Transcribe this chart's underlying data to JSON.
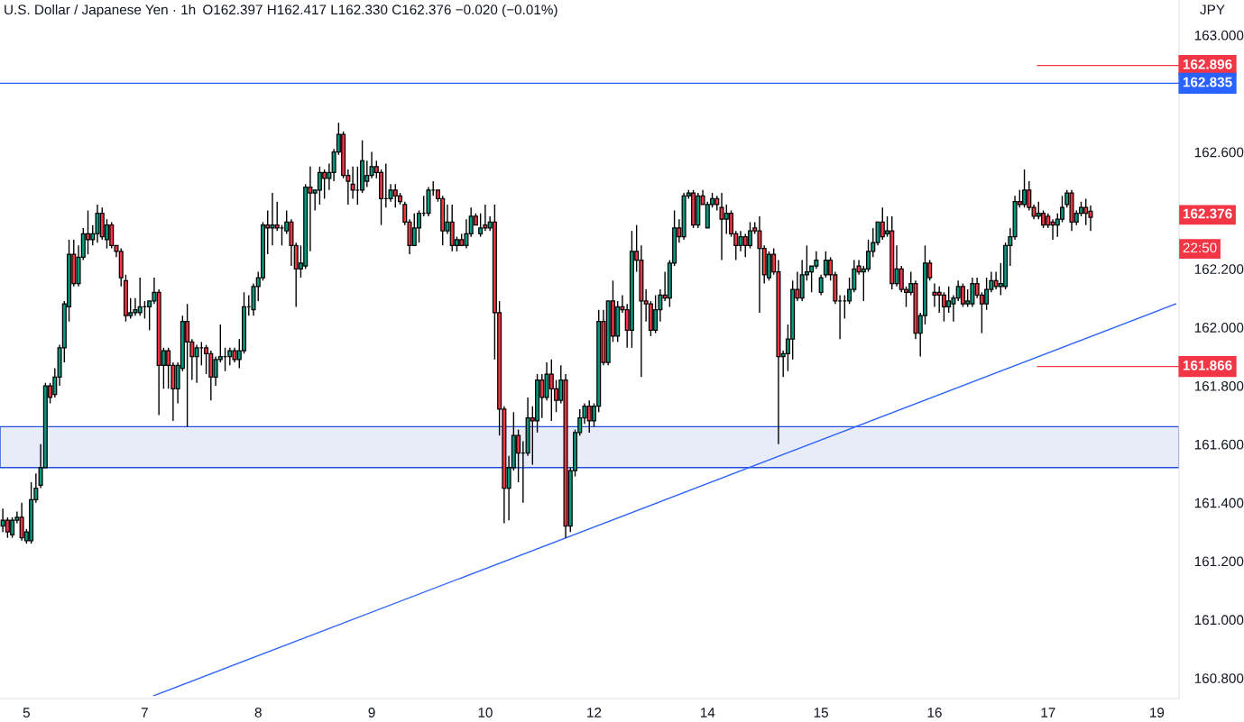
{
  "chart_data": {
    "type": "candlestick",
    "title": "U.S. Dollar / Japanese Yen · 1h",
    "subtitle": "O162.397 H162.417 L162.330 C162.376 −0.020 (−0.01%)",
    "ylabel": "JPY",
    "categories": [
      null,
      null,
      null,
      null,
      null,
      "5",
      null,
      null,
      null,
      null,
      null,
      null,
      null,
      null,
      null,
      null,
      null,
      null,
      null,
      null,
      null,
      null,
      null,
      null,
      null,
      null,
      null,
      null,
      null,
      null,
      "7",
      null,
      null,
      null,
      null,
      null,
      null,
      null,
      null,
      null,
      null,
      null,
      null,
      null,
      null,
      null,
      null,
      null,
      null,
      null,
      null,
      null,
      null,
      null,
      "8",
      null,
      null,
      null,
      null,
      null,
      null,
      null,
      null,
      null,
      null,
      null,
      null,
      null,
      null,
      null,
      null,
      null,
      null,
      null,
      null,
      null,
      null,
      null,
      "9",
      null,
      null,
      null,
      null,
      null,
      null,
      null,
      null,
      null,
      null,
      null,
      null,
      null,
      null,
      null,
      null,
      null,
      null,
      null,
      null,
      null,
      null,
      null,
      "10",
      null,
      null,
      null,
      null,
      null,
      null,
      null,
      null,
      null,
      null,
      null,
      null,
      null,
      null,
      null,
      null,
      null,
      null,
      null,
      null,
      null,
      null,
      "12",
      null,
      null,
      null,
      null,
      null,
      null,
      null,
      null,
      null,
      null,
      null,
      null,
      null,
      null,
      null,
      null,
      null,
      null,
      null,
      null,
      null,
      null,
      null,
      "14",
      null,
      null,
      null,
      null,
      null,
      null,
      null,
      null,
      null,
      null,
      null,
      null,
      null,
      null,
      null,
      null,
      null,
      null,
      null,
      null,
      null,
      null,
      null,
      "15",
      null,
      null,
      null,
      null,
      null,
      null,
      null,
      null,
      null,
      null,
      null,
      null,
      null,
      null,
      null,
      null,
      null,
      null,
      null,
      null,
      null,
      null,
      null,
      "16",
      null,
      null,
      null,
      null,
      null,
      null,
      null,
      null,
      null,
      null,
      null,
      null,
      null,
      null,
      null,
      null,
      null,
      null,
      null,
      null,
      null,
      null,
      null,
      "17",
      null,
      null,
      null,
      null,
      null,
      null,
      null,
      null,
      null,
      null,
      null,
      null,
      null,
      null,
      null,
      null,
      null,
      null,
      null,
      null,
      null,
      null,
      "19",
      null,
      null,
      null,
      null
    ],
    "ohlc": [
      [
        161.32,
        161.38,
        161.3,
        161.34
      ],
      [
        161.34,
        161.35,
        161.28,
        161.3
      ],
      [
        161.29,
        161.35,
        161.28,
        161.34
      ],
      [
        161.34,
        161.37,
        161.33,
        161.35
      ],
      [
        161.35,
        161.4,
        161.27,
        161.28
      ],
      [
        161.27,
        161.31,
        161.26,
        161.3
      ],
      [
        161.27,
        161.47,
        161.26,
        161.41
      ],
      [
        161.41,
        161.5,
        161.4,
        161.45
      ],
      [
        161.46,
        161.6,
        161.45,
        161.52
      ],
      [
        161.52,
        161.81,
        161.52,
        161.8
      ],
      [
        161.8,
        161.81,
        161.74,
        161.76
      ],
      [
        161.77,
        161.86,
        161.76,
        161.83
      ],
      [
        161.83,
        161.94,
        161.8,
        161.93
      ],
      [
        161.93,
        162.09,
        161.88,
        162.08
      ],
      [
        162.07,
        162.3,
        162.02,
        162.25
      ],
      [
        162.25,
        162.3,
        162.14,
        162.15
      ],
      [
        162.15,
        162.28,
        162.14,
        162.24
      ],
      [
        162.24,
        162.34,
        162.23,
        162.32
      ],
      [
        162.32,
        162.4,
        162.25,
        162.3
      ],
      [
        162.3,
        162.35,
        162.28,
        162.32
      ],
      [
        162.32,
        162.42,
        162.29,
        162.39
      ],
      [
        162.39,
        162.41,
        162.3,
        162.31
      ],
      [
        162.3,
        162.37,
        162.27,
        162.35
      ],
      [
        162.35,
        162.36,
        162.27,
        162.28
      ],
      [
        162.28,
        162.28,
        162.24,
        162.26
      ],
      [
        162.26,
        162.27,
        162.14,
        162.17
      ],
      [
        162.16,
        162.18,
        162.02,
        162.04
      ],
      [
        162.04,
        162.1,
        162.03,
        162.05
      ],
      [
        162.05,
        162.1,
        162.04,
        162.06
      ],
      [
        162.05,
        162.17,
        162.04,
        162.07
      ],
      [
        162.07,
        162.09,
        162.03,
        162.07
      ],
      [
        162.07,
        162.09,
        161.99,
        162.09
      ],
      [
        162.09,
        162.17,
        162.08,
        162.12
      ],
      [
        162.12,
        162.13,
        161.7,
        161.87
      ],
      [
        161.87,
        161.93,
        161.79,
        161.92
      ],
      [
        161.92,
        161.93,
        161.79,
        161.87
      ],
      [
        161.87,
        161.88,
        161.68,
        161.79
      ],
      [
        161.79,
        161.88,
        161.74,
        161.87
      ],
      [
        161.86,
        162.04,
        161.85,
        162.02
      ],
      [
        162.02,
        162.08,
        161.66,
        161.95
      ],
      [
        161.95,
        161.96,
        161.82,
        161.9
      ],
      [
        161.9,
        161.94,
        161.81,
        161.93
      ],
      [
        161.93,
        161.95,
        161.87,
        161.93
      ],
      [
        161.93,
        161.94,
        161.84,
        161.91
      ],
      [
        161.91,
        161.92,
        161.75,
        161.83
      ],
      [
        161.83,
        161.9,
        161.8,
        161.89
      ],
      [
        161.89,
        162.01,
        161.88,
        161.9
      ],
      [
        161.9,
        161.93,
        161.85,
        161.9
      ],
      [
        161.9,
        161.93,
        161.87,
        161.92
      ],
      [
        161.92,
        161.93,
        161.88,
        161.89
      ],
      [
        161.89,
        161.96,
        161.86,
        161.92
      ],
      [
        161.92,
        162.12,
        161.91,
        162.07
      ],
      [
        162.07,
        162.11,
        162.04,
        162.07
      ],
      [
        162.06,
        162.15,
        162.04,
        162.14
      ],
      [
        162.14,
        162.19,
        162.09,
        162.17
      ],
      [
        162.17,
        162.36,
        162.16,
        162.35
      ],
      [
        162.35,
        162.4,
        162.25,
        162.34
      ],
      [
        162.34,
        162.46,
        162.28,
        162.35
      ],
      [
        162.35,
        162.43,
        162.33,
        162.34
      ],
      [
        162.34,
        162.35,
        162.28,
        162.34
      ],
      [
        162.33,
        162.4,
        162.32,
        162.36
      ],
      [
        162.36,
        162.37,
        162.21,
        162.28
      ],
      [
        162.28,
        162.29,
        162.07,
        162.2
      ],
      [
        162.2,
        162.28,
        162.17,
        162.22
      ],
      [
        162.21,
        162.49,
        162.2,
        162.48
      ],
      [
        162.48,
        162.55,
        162.26,
        162.46
      ],
      [
        162.46,
        162.47,
        162.4,
        162.47
      ],
      [
        162.47,
        162.55,
        162.42,
        162.53
      ],
      [
        162.53,
        162.54,
        162.44,
        162.51
      ],
      [
        162.51,
        162.56,
        162.47,
        162.53
      ],
      [
        162.53,
        162.61,
        162.5,
        162.6
      ],
      [
        162.6,
        162.7,
        162.59,
        162.66
      ],
      [
        162.66,
        162.67,
        162.51,
        162.52
      ],
      [
        162.52,
        162.54,
        162.42,
        162.5
      ],
      [
        162.49,
        162.55,
        162.44,
        162.47
      ],
      [
        162.47,
        162.55,
        162.42,
        162.47
      ],
      [
        162.47,
        162.64,
        162.46,
        162.57
      ],
      [
        162.5,
        162.57,
        162.48,
        162.52
      ],
      [
        162.52,
        162.6,
        162.51,
        162.55
      ],
      [
        162.55,
        162.57,
        162.51,
        162.53
      ],
      [
        162.53,
        162.54,
        162.35,
        162.44
      ],
      [
        162.44,
        162.56,
        162.41,
        162.44
      ],
      [
        162.44,
        162.49,
        162.43,
        162.47
      ],
      [
        162.47,
        162.49,
        162.41,
        162.45
      ],
      [
        162.45,
        162.46,
        162.42,
        162.43
      ],
      [
        162.42,
        162.43,
        162.35,
        162.36
      ],
      [
        162.36,
        162.37,
        162.25,
        162.28
      ],
      [
        162.28,
        162.39,
        162.28,
        162.34
      ],
      [
        162.34,
        162.4,
        162.29,
        162.39
      ],
      [
        162.39,
        162.45,
        162.38,
        162.39
      ],
      [
        162.39,
        162.48,
        162.38,
        162.47
      ],
      [
        162.47,
        162.5,
        162.45,
        162.47
      ],
      [
        162.47,
        162.47,
        162.43,
        162.44
      ],
      [
        162.44,
        162.45,
        162.28,
        162.33
      ],
      [
        162.33,
        162.42,
        162.32,
        162.36
      ],
      [
        162.36,
        162.42,
        162.26,
        162.28
      ],
      [
        162.28,
        162.31,
        162.26,
        162.3
      ],
      [
        162.3,
        162.32,
        162.28,
        162.28
      ],
      [
        162.28,
        162.37,
        162.27,
        162.32
      ],
      [
        162.32,
        162.41,
        162.31,
        162.38
      ],
      [
        162.38,
        162.39,
        162.35,
        162.35
      ],
      [
        162.32,
        162.39,
        162.31,
        162.34
      ],
      [
        162.35,
        162.42,
        162.33,
        162.34
      ],
      [
        162.34,
        162.38,
        162.33,
        162.36
      ],
      [
        162.36,
        162.42,
        161.89,
        162.05
      ],
      [
        162.05,
        162.09,
        161.63,
        161.72
      ],
      [
        161.72,
        161.73,
        161.33,
        161.45
      ],
      [
        161.45,
        161.56,
        161.34,
        161.52
      ],
      [
        161.52,
        161.71,
        161.51,
        161.63
      ],
      [
        161.63,
        161.65,
        161.47,
        161.57
      ],
      [
        161.57,
        161.61,
        161.4,
        161.57
      ],
      [
        161.57,
        161.76,
        161.56,
        161.69
      ],
      [
        161.69,
        161.73,
        161.53,
        161.68
      ],
      [
        161.68,
        161.84,
        161.64,
        161.82
      ],
      [
        161.82,
        161.84,
        161.69,
        161.76
      ],
      [
        161.76,
        161.88,
        161.75,
        161.84
      ],
      [
        161.84,
        161.89,
        161.68,
        161.79
      ],
      [
        161.79,
        161.82,
        161.71,
        161.75
      ],
      [
        161.75,
        161.87,
        161.74,
        161.82
      ],
      [
        161.82,
        161.84,
        161.28,
        161.32
      ],
      [
        161.32,
        161.52,
        161.3,
        161.51
      ],
      [
        161.51,
        161.65,
        161.49,
        161.64
      ],
      [
        161.64,
        161.72,
        161.63,
        161.69
      ],
      [
        161.69,
        161.74,
        161.67,
        161.73
      ],
      [
        161.73,
        161.75,
        161.64,
        161.68
      ],
      [
        161.68,
        161.74,
        161.66,
        161.73
      ],
      [
        161.73,
        162.06,
        161.71,
        162.02
      ],
      [
        162.02,
        162.06,
        161.87,
        161.88
      ],
      [
        161.88,
        162.09,
        161.87,
        162.09
      ],
      [
        162.09,
        162.16,
        161.95,
        161.97
      ],
      [
        161.97,
        162.09,
        161.95,
        162.07
      ],
      [
        162.07,
        162.11,
        162.05,
        162.06
      ],
      [
        162.06,
        162.08,
        161.93,
        161.99
      ],
      [
        161.99,
        162.33,
        161.93,
        162.26
      ],
      [
        162.26,
        162.35,
        162.19,
        162.23
      ],
      [
        162.23,
        162.28,
        161.83,
        162.09
      ],
      [
        162.09,
        162.13,
        162.02,
        162.08
      ],
      [
        162.08,
        162.09,
        161.97,
        161.99
      ],
      [
        161.99,
        162.11,
        161.98,
        162.06
      ],
      [
        162.06,
        162.13,
        162.02,
        162.11
      ],
      [
        162.11,
        162.19,
        162.09,
        162.1
      ],
      [
        162.1,
        162.23,
        162.07,
        162.22
      ],
      [
        162.22,
        162.4,
        162.21,
        162.34
      ],
      [
        162.34,
        162.37,
        162.29,
        162.31
      ],
      [
        162.31,
        162.46,
        162.3,
        162.45
      ],
      [
        162.45,
        162.47,
        162.44,
        162.46
      ],
      [
        162.46,
        162.47,
        162.34,
        162.35
      ],
      [
        162.35,
        162.46,
        162.34,
        162.45
      ],
      [
        162.45,
        162.47,
        162.42,
        162.42
      ],
      [
        162.34,
        162.43,
        162.34,
        162.42
      ],
      [
        162.42,
        162.46,
        162.41,
        162.44
      ],
      [
        162.44,
        162.45,
        162.4,
        162.42
      ],
      [
        162.41,
        162.46,
        162.23,
        162.37
      ],
      [
        162.37,
        162.42,
        162.32,
        162.39
      ],
      [
        162.39,
        162.4,
        162.31,
        162.32
      ],
      [
        162.32,
        162.33,
        162.23,
        162.28
      ],
      [
        162.28,
        162.33,
        162.26,
        162.31
      ],
      [
        162.31,
        162.32,
        162.24,
        162.28
      ],
      [
        162.28,
        162.36,
        162.27,
        162.33
      ],
      [
        162.34,
        162.36,
        162.32,
        162.33
      ],
      [
        162.33,
        162.38,
        162.05,
        162.27
      ],
      [
        162.27,
        162.28,
        162.15,
        162.18
      ],
      [
        162.17,
        162.26,
        162.16,
        162.25
      ],
      [
        162.25,
        162.27,
        162.18,
        162.19
      ],
      [
        162.19,
        162.23,
        161.6,
        161.9
      ],
      [
        161.9,
        161.92,
        161.83,
        161.91
      ],
      [
        161.91,
        162.01,
        161.85,
        161.96
      ],
      [
        161.96,
        162.16,
        161.89,
        162.13
      ],
      [
        162.13,
        162.19,
        162.09,
        162.1
      ],
      [
        162.1,
        162.23,
        162.09,
        162.18
      ],
      [
        162.18,
        162.28,
        162.16,
        162.19
      ],
      [
        162.19,
        162.21,
        162.12,
        162.21
      ],
      [
        162.21,
        162.26,
        162.2,
        162.23
      ],
      [
        162.12,
        162.18,
        162.11,
        162.17
      ],
      [
        162.18,
        162.26,
        162.17,
        162.23
      ],
      [
        162.23,
        162.24,
        162.16,
        162.18
      ],
      [
        162.18,
        162.19,
        162.08,
        162.09
      ],
      [
        162.09,
        162.11,
        161.96,
        162.09
      ],
      [
        162.09,
        162.11,
        162.03,
        162.09
      ],
      [
        162.09,
        162.17,
        162.08,
        162.13
      ],
      [
        162.13,
        162.23,
        162.12,
        162.2
      ],
      [
        162.21,
        162.23,
        162.18,
        162.19
      ],
      [
        162.19,
        162.21,
        162.09,
        162.2
      ],
      [
        162.2,
        162.3,
        162.19,
        162.26
      ],
      [
        162.26,
        162.34,
        162.24,
        162.29
      ],
      [
        162.29,
        162.36,
        162.28,
        162.36
      ],
      [
        162.36,
        162.41,
        162.3,
        162.31
      ],
      [
        162.32,
        162.38,
        162.31,
        162.33
      ],
      [
        162.33,
        162.38,
        162.13,
        162.15
      ],
      [
        162.15,
        162.28,
        162.14,
        162.2
      ],
      [
        162.2,
        162.21,
        162.12,
        162.13
      ],
      [
        162.13,
        162.14,
        162.07,
        162.12
      ],
      [
        162.12,
        162.19,
        162.11,
        162.15
      ],
      [
        162.15,
        162.16,
        161.96,
        161.98
      ],
      [
        161.98,
        162.05,
        161.9,
        162.04
      ],
      [
        162.04,
        162.28,
        162.01,
        162.22
      ],
      [
        162.22,
        162.23,
        162.16,
        162.17
      ],
      [
        162.12,
        162.15,
        162.07,
        162.11
      ],
      [
        162.12,
        162.14,
        162.05,
        162.11
      ],
      [
        162.11,
        162.12,
        162.02,
        162.07
      ],
      [
        162.07,
        162.14,
        162.05,
        162.09
      ],
      [
        162.08,
        162.11,
        162.02,
        162.1
      ],
      [
        162.1,
        162.16,
        162.09,
        162.14
      ],
      [
        162.14,
        162.15,
        162.07,
        162.08
      ],
      [
        162.08,
        162.13,
        162.07,
        162.09
      ],
      [
        162.08,
        162.17,
        162.07,
        162.15
      ],
      [
        162.15,
        162.17,
        162.1,
        162.11
      ],
      [
        162.11,
        162.12,
        161.98,
        162.08
      ],
      [
        162.08,
        162.17,
        162.06,
        162.13
      ],
      [
        162.13,
        162.19,
        162.12,
        162.16
      ],
      [
        162.16,
        162.19,
        162.13,
        162.14
      ],
      [
        162.14,
        162.22,
        162.11,
        162.15
      ],
      [
        162.14,
        162.29,
        162.13,
        162.28
      ],
      [
        162.28,
        162.34,
        162.21,
        162.31
      ],
      [
        162.31,
        162.45,
        162.3,
        162.43
      ],
      [
        162.43,
        162.47,
        162.41,
        162.42
      ],
      [
        162.42,
        162.54,
        162.41,
        162.47
      ],
      [
        162.47,
        162.5,
        162.4,
        162.41
      ],
      [
        162.41,
        162.42,
        162.37,
        162.38
      ],
      [
        162.38,
        162.43,
        162.37,
        162.39
      ],
      [
        162.39,
        162.4,
        162.34,
        162.35
      ],
      [
        162.38,
        162.39,
        162.34,
        162.35
      ],
      [
        162.36,
        162.37,
        162.3,
        162.35
      ],
      [
        162.35,
        162.39,
        162.31,
        162.37
      ],
      [
        162.37,
        162.45,
        162.36,
        162.41
      ],
      [
        162.42,
        162.47,
        162.41,
        162.46
      ],
      [
        162.46,
        162.47,
        162.33,
        162.36
      ],
      [
        162.36,
        162.4,
        162.35,
        162.39
      ],
      [
        162.39,
        162.43,
        162.38,
        162.41
      ],
      [
        162.41,
        162.44,
        162.35,
        162.39
      ],
      [
        162.397,
        162.417,
        162.33,
        162.376
      ],
      null,
      null,
      null,
      null,
      null,
      null,
      null,
      null,
      null,
      null,
      null,
      null,
      null,
      null,
      null,
      null,
      null,
      null
    ],
    "series": [
      {
        "type": "line",
        "color": "#2962ff",
        "values": [
          null,
          null,
          null,
          null,
          null,
          null,
          null,
          null,
          null,
          null,
          null,
          null,
          null,
          null,
          null,
          null,
          null,
          null,
          null,
          null,
          null,
          null,
          null,
          null,
          null,
          null,
          null,
          null,
          null,
          null,
          null,
          null,
          160.74,
          null,
          null,
          null,
          null,
          null,
          null,
          null,
          null,
          null,
          null,
          null,
          null,
          null,
          null,
          null,
          null,
          null,
          null,
          null,
          null,
          null,
          null,
          null,
          null,
          null,
          null,
          null,
          null,
          null,
          null,
          null,
          null,
          null,
          null,
          null,
          null,
          null,
          null,
          null,
          null,
          null,
          null,
          null,
          null,
          null,
          null,
          null,
          null,
          null,
          null,
          null,
          null,
          null,
          null,
          null,
          null,
          null,
          null,
          null,
          null,
          null,
          null,
          null,
          null,
          null,
          null,
          null,
          null,
          null,
          null,
          null,
          null,
          null,
          null,
          null,
          null,
          null,
          null,
          null,
          null,
          null,
          null,
          null,
          null,
          null,
          null,
          null,
          null,
          null,
          null,
          null,
          null,
          null,
          null,
          null,
          null,
          null,
          null,
          null,
          null,
          null,
          null,
          null,
          null,
          null,
          null,
          null,
          null,
          null,
          null,
          null,
          null,
          null,
          null,
          null,
          null,
          null,
          null,
          null,
          null,
          null,
          null,
          null,
          null,
          null,
          null,
          null,
          null,
          null,
          null,
          null,
          null,
          null,
          null,
          null,
          null,
          null,
          null,
          null,
          null,
          null,
          null,
          null,
          null,
          null,
          null,
          null,
          null,
          null,
          null,
          null,
          null,
          null,
          null,
          null,
          null,
          null,
          null,
          null,
          null,
          null,
          null,
          null,
          null,
          null,
          null,
          null,
          null,
          null,
          null,
          null,
          null,
          null,
          null,
          null,
          null,
          null,
          null,
          null,
          null,
          null,
          null,
          null,
          null,
          null,
          null,
          null,
          null,
          null,
          null,
          null,
          null,
          null,
          null,
          null,
          null,
          null,
          null,
          null,
          null,
          null,
          null,
          null,
          null,
          null,
          null,
          null,
          null,
          null,
          null,
          null,
          null,
          null,
          null,
          null,
          162.08
        ]
      }
    ],
    "ylim": [
      160.73,
      163.12
    ],
    "yticks": [
      {
        "value": 160.8,
        "label": "160.800"
      },
      {
        "value": 161.0,
        "label": "161.000"
      },
      {
        "value": 161.2,
        "label": "161.200"
      },
      {
        "value": 161.4,
        "label": "161.400"
      },
      {
        "value": 161.6,
        "label": "161.600"
      },
      {
        "value": 161.8,
        "label": "161.800"
      },
      {
        "value": 162.0,
        "label": "162.000"
      },
      {
        "value": 162.2,
        "label": "162.200"
      },
      {
        "value": 162.6,
        "label": "162.600"
      },
      {
        "value": 163.0,
        "label": "163.000"
      }
    ],
    "ref_lines": [
      {
        "axis": "y",
        "value": 162.896,
        "label": "162.896",
        "color": "#f23645"
      },
      {
        "axis": "y",
        "value": 162.835,
        "label": "162.835",
        "color": "#2962ff"
      },
      {
        "axis": "y",
        "value": 161.866,
        "label": "161.866",
        "color": "#f23645"
      }
    ],
    "bands": [
      {
        "axis": "y",
        "from": 161.52,
        "to": 161.66,
        "color": "#e8ecf9"
      }
    ],
    "annotations": [
      "162.376",
      "22:50"
    ],
    "grid": false
  }
}
